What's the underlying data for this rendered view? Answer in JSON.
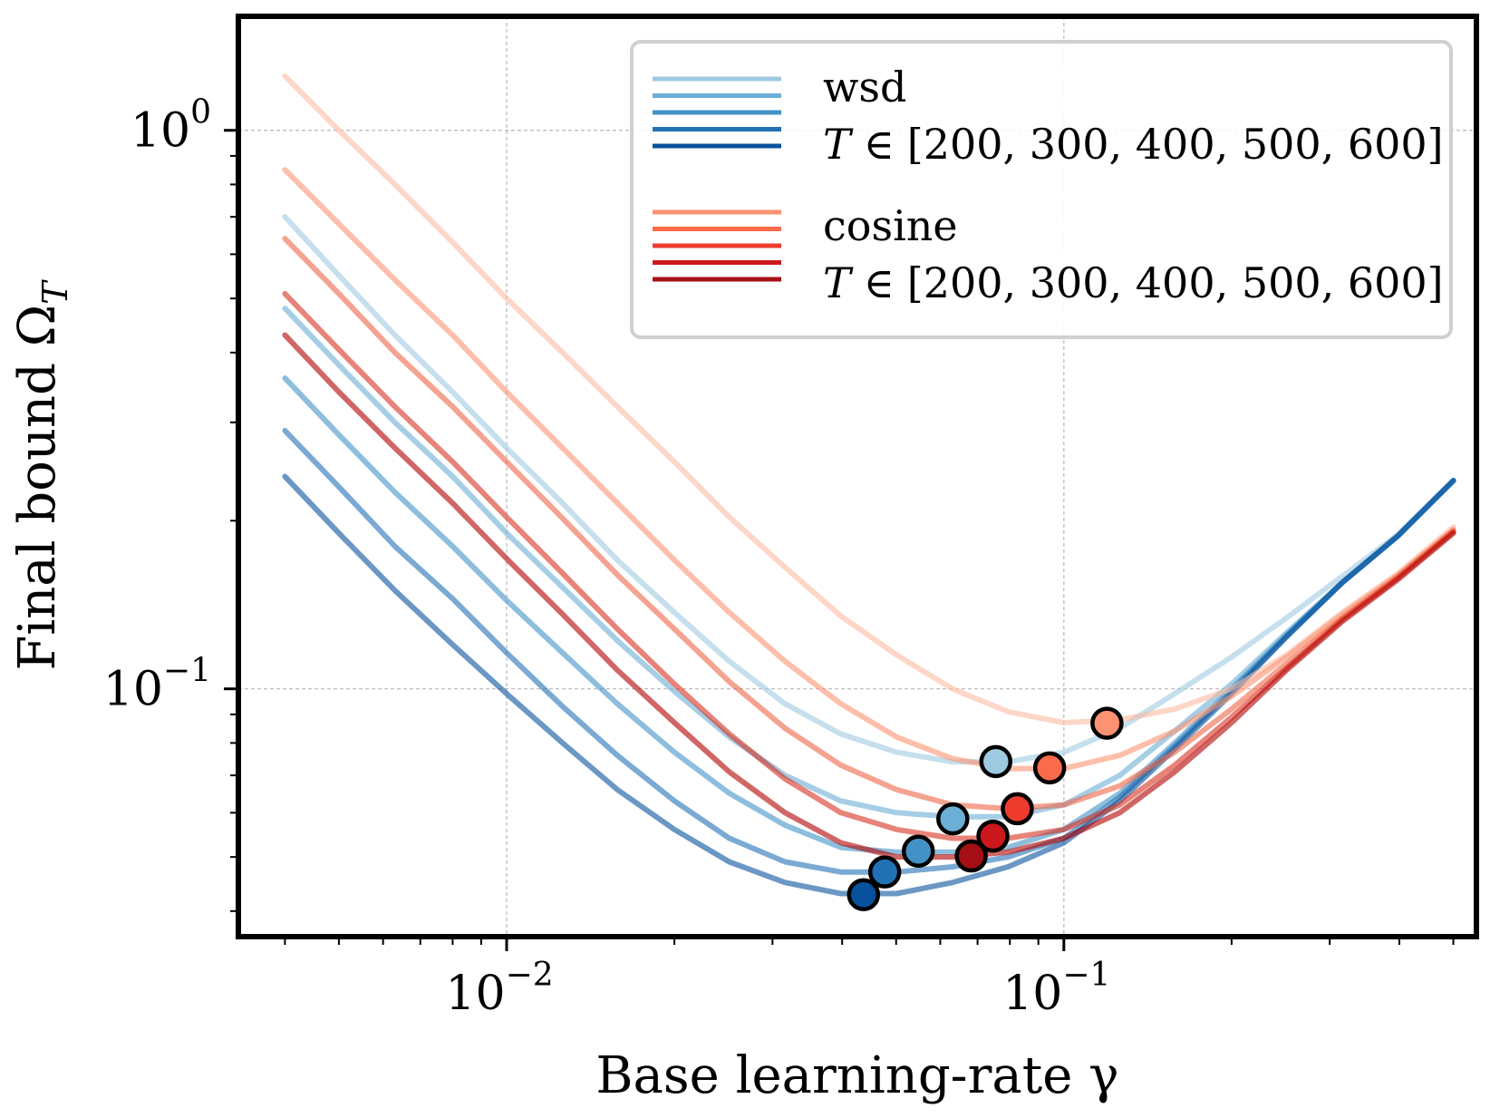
{
  "chart_data": {
    "type": "line",
    "xscale": "log",
    "yscale": "log",
    "xlim": [
      0.0033,
      0.55
    ],
    "ylim": [
      0.036,
      1.6
    ],
    "xlabel": "Base learning-rate γ",
    "ylabel": "Final bound Ω",
    "ylabel_sub": "T",
    "x_ticks": [
      {
        "value": 0.01,
        "base": "10",
        "exp": "−2"
      },
      {
        "value": 0.1,
        "base": "10",
        "exp": "−1"
      }
    ],
    "y_ticks": [
      {
        "value": 0.1,
        "base": "10",
        "exp": "−1"
      },
      {
        "value": 1.0,
        "base": "10",
        "exp": "0"
      }
    ],
    "grid": true,
    "legend": {
      "position": "top-right",
      "groups": [
        {
          "name": "wsd",
          "subtitle_var": "T",
          "subtitle_rel": "∈",
          "subtitle_values": "[200, 300, 400, 500, 600]",
          "colors": [
            "#9ecae1",
            "#6baed6",
            "#4292c6",
            "#2171b5",
            "#08519c"
          ]
        },
        {
          "name": "cosine",
          "subtitle_var": "T",
          "subtitle_rel": "∈",
          "subtitle_values": "[200, 300, 400, 500, 600]",
          "colors": [
            "#fc9272",
            "#fb6a4a",
            "#ef3b2c",
            "#cb181d",
            "#a50f15"
          ]
        }
      ]
    },
    "x": [
      0.004,
      0.005,
      0.0063,
      0.008,
      0.01,
      0.0126,
      0.0158,
      0.02,
      0.0251,
      0.0316,
      0.0398,
      0.0501,
      0.0631,
      0.0794,
      0.1,
      0.126,
      0.158,
      0.2,
      0.251,
      0.316,
      0.398,
      0.5
    ],
    "series": [
      {
        "name": "wsd T=200",
        "color": "#9ecae1",
        "values": [
          0.7,
          0.55,
          0.43,
          0.34,
          0.27,
          0.215,
          0.17,
          0.137,
          0.112,
          0.094,
          0.083,
          0.077,
          0.074,
          0.074,
          0.077,
          0.085,
          0.098,
          0.114,
          0.134,
          0.159,
          0.189,
          0.236
        ],
        "min": {
          "x": 0.0755,
          "y": 0.0741
        }
      },
      {
        "name": "wsd T=300",
        "color": "#6baed6",
        "values": [
          0.48,
          0.38,
          0.3,
          0.24,
          0.19,
          0.152,
          0.122,
          0.099,
          0.082,
          0.07,
          0.063,
          0.06,
          0.059,
          0.059,
          0.062,
          0.07,
          0.084,
          0.102,
          0.126,
          0.155,
          0.188,
          0.236
        ],
        "min": {
          "x": 0.0632,
          "y": 0.0585
        }
      },
      {
        "name": "wsd T=400",
        "color": "#4292c6",
        "values": [
          0.36,
          0.285,
          0.225,
          0.18,
          0.144,
          0.116,
          0.094,
          0.077,
          0.065,
          0.057,
          0.052,
          0.051,
          0.051,
          0.052,
          0.056,
          0.065,
          0.08,
          0.1,
          0.125,
          0.155,
          0.188,
          0.236
        ],
        "min": {
          "x": 0.0548,
          "y": 0.0512
        }
      },
      {
        "name": "wsd T=500",
        "color": "#2171b5",
        "values": [
          0.29,
          0.23,
          0.18,
          0.145,
          0.116,
          0.093,
          0.076,
          0.063,
          0.054,
          0.049,
          0.047,
          0.047,
          0.048,
          0.05,
          0.054,
          0.064,
          0.079,
          0.099,
          0.124,
          0.155,
          0.188,
          0.236
        ],
        "min": {
          "x": 0.0477,
          "y": 0.047
        }
      },
      {
        "name": "wsd T=600",
        "color": "#08519c",
        "values": [
          0.24,
          0.19,
          0.15,
          0.12,
          0.098,
          0.08,
          0.066,
          0.056,
          0.049,
          0.045,
          0.043,
          0.043,
          0.045,
          0.048,
          0.053,
          0.063,
          0.078,
          0.098,
          0.124,
          0.155,
          0.188,
          0.236
        ],
        "min": {
          "x": 0.0437,
          "y": 0.0428
        }
      },
      {
        "name": "cosine T=200",
        "color": "#fcbba1",
        "values": [
          1.25,
          1.0,
          0.8,
          0.63,
          0.5,
          0.4,
          0.32,
          0.255,
          0.203,
          0.165,
          0.135,
          0.115,
          0.1,
          0.091,
          0.087,
          0.088,
          0.092,
          0.1,
          0.115,
          0.137,
          0.161,
          0.195
        ],
        "min": {
          "x": 0.1195,
          "y": 0.0868
        }
      },
      {
        "name": "cosine T=300",
        "color": "#fc9272",
        "values": [
          0.85,
          0.68,
          0.54,
          0.43,
          0.34,
          0.27,
          0.215,
          0.17,
          0.137,
          0.112,
          0.094,
          0.082,
          0.075,
          0.072,
          0.072,
          0.076,
          0.084,
          0.097,
          0.114,
          0.136,
          0.16,
          0.193
        ],
        "min": {
          "x": 0.0943,
          "y": 0.0722
        }
      },
      {
        "name": "cosine T=400",
        "color": "#ef6548",
        "values": [
          0.64,
          0.51,
          0.4,
          0.32,
          0.255,
          0.202,
          0.16,
          0.128,
          0.103,
          0.085,
          0.073,
          0.066,
          0.062,
          0.061,
          0.062,
          0.067,
          0.077,
          0.092,
          0.111,
          0.134,
          0.159,
          0.192
        ],
        "min": {
          "x": 0.0825,
          "y": 0.061
        }
      },
      {
        "name": "cosine T=500",
        "color": "#d7301f",
        "values": [
          0.51,
          0.405,
          0.32,
          0.255,
          0.203,
          0.161,
          0.128,
          0.102,
          0.083,
          0.069,
          0.06,
          0.056,
          0.054,
          0.054,
          0.056,
          0.062,
          0.073,
          0.089,
          0.109,
          0.133,
          0.158,
          0.191
        ],
        "min": {
          "x": 0.0746,
          "y": 0.0545
        }
      },
      {
        "name": "cosine T=600",
        "color": "#b30000",
        "values": [
          0.43,
          0.34,
          0.27,
          0.215,
          0.171,
          0.136,
          0.108,
          0.087,
          0.071,
          0.06,
          0.053,
          0.05,
          0.05,
          0.051,
          0.054,
          0.06,
          0.071,
          0.087,
          0.108,
          0.132,
          0.157,
          0.19
        ],
        "min": {
          "x": 0.0682,
          "y": 0.0502
        }
      }
    ],
    "markers": [
      {
        "series": "cosine T=200",
        "x": 0.1195,
        "y": 0.0868,
        "fill": "#fc9272"
      },
      {
        "series": "wsd T=200",
        "x": 0.0755,
        "y": 0.0741,
        "fill": "#9ecae1"
      },
      {
        "series": "cosine T=300",
        "x": 0.0943,
        "y": 0.0722,
        "fill": "#fb6a4a"
      },
      {
        "series": "wsd T=300",
        "x": 0.0632,
        "y": 0.0585,
        "fill": "#6baed6"
      },
      {
        "series": "cosine T=400",
        "x": 0.0825,
        "y": 0.061,
        "fill": "#ef3b2c"
      },
      {
        "series": "wsd T=400",
        "x": 0.0548,
        "y": 0.0512,
        "fill": "#4292c6"
      },
      {
        "series": "cosine T=500",
        "x": 0.0746,
        "y": 0.0545,
        "fill": "#cb181d"
      },
      {
        "series": "wsd T=500",
        "x": 0.0477,
        "y": 0.047,
        "fill": "#2171b5"
      },
      {
        "series": "cosine T=600",
        "x": 0.0682,
        "y": 0.0502,
        "fill": "#a50f15"
      },
      {
        "series": "wsd T=600",
        "x": 0.0437,
        "y": 0.0428,
        "fill": "#08519c"
      }
    ]
  }
}
